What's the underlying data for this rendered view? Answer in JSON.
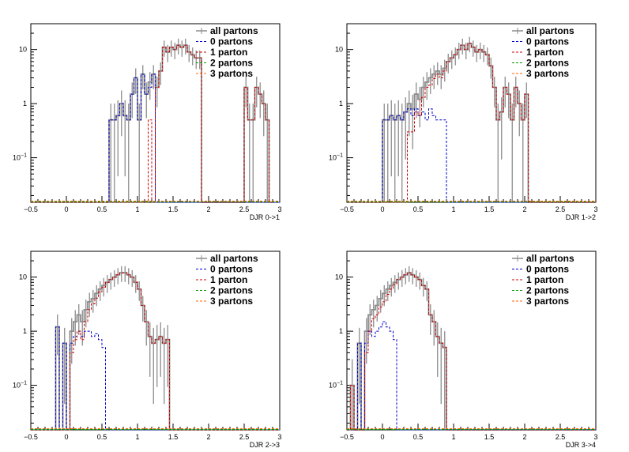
{
  "colors": {
    "all": "#8c8c8c",
    "p0": "#0000cc",
    "p1": "#cc0000",
    "p2": "#009900",
    "p3": "#ff6600"
  },
  "legend_entries": [
    "all partons",
    "0 partons",
    "1 parton",
    "2 partons",
    "3 partons"
  ],
  "chart_data": [
    {
      "type": "histogram",
      "xlabel": "DJR 0->1",
      "xlim": [
        -0.5,
        3
      ],
      "ylim": [
        0.015,
        30
      ],
      "log_y": true,
      "xticks": [
        -0.5,
        0,
        0.5,
        1,
        1.5,
        2,
        2.5,
        3
      ],
      "yticks": [
        {
          "v": 0.1,
          "label": "10^-1"
        },
        {
          "v": 1,
          "label": "1"
        },
        {
          "v": 10,
          "label": "10"
        }
      ],
      "legend": "top-right",
      "bin_start": -0.5,
      "bin_width": 0.05,
      "total": [
        0,
        0,
        0,
        0,
        0,
        0,
        0,
        0,
        0,
        0,
        0,
        0,
        0,
        0,
        0,
        0,
        0,
        0,
        0,
        0,
        0,
        0,
        0.5,
        0.5,
        0.6,
        1.0,
        0.6,
        0.5,
        1.5,
        3.0,
        0.5,
        3.5,
        1.5,
        2.5,
        3.5,
        2.0,
        4.0,
        11,
        9,
        11,
        10,
        12,
        11,
        12,
        9,
        8,
        7,
        7,
        0,
        0,
        0,
        0,
        0,
        0,
        0,
        0,
        0,
        0,
        0,
        0,
        2.0,
        0.5,
        0.5,
        2.0,
        1.5,
        1.0,
        0.5,
        0
      ],
      "p0": [
        0,
        0,
        0,
        0,
        0,
        0,
        0,
        0,
        0,
        0,
        0,
        0,
        0,
        0,
        0,
        0,
        0,
        0,
        0,
        0,
        0,
        0,
        0.5,
        0.5,
        0.6,
        1.0,
        0.6,
        0.5,
        1.5,
        3.0,
        0.5,
        3.5,
        1.5,
        2.0,
        3.5,
        0,
        0,
        0,
        0,
        0,
        0,
        0,
        0,
        0,
        0,
        0,
        0,
        0,
        0,
        0,
        0,
        0,
        0,
        0,
        0,
        0,
        0,
        0,
        0,
        0,
        0,
        0,
        0,
        0,
        0,
        0,
        0,
        0,
        0,
        0
      ],
      "p1": [
        0,
        0,
        0,
        0,
        0,
        0,
        0,
        0,
        0,
        0,
        0,
        0,
        0,
        0,
        0,
        0,
        0,
        0,
        0,
        0,
        0,
        0,
        0,
        0,
        0,
        0,
        0,
        0,
        0,
        0,
        0,
        0,
        0,
        0.5,
        0,
        2.0,
        4.0,
        11,
        9,
        11,
        10,
        12,
        11,
        12,
        9,
        8,
        7,
        7,
        0,
        0,
        0,
        0,
        0,
        0,
        0,
        0,
        0,
        0,
        0,
        0,
        2.0,
        0.5,
        0.5,
        2.0,
        1.5,
        1.0,
        0.5,
        0
      ]
    },
    {
      "type": "histogram",
      "xlabel": "DJR 1->2",
      "xlim": [
        -0.5,
        3
      ],
      "ylim": [
        0.015,
        30
      ],
      "log_y": true,
      "xticks": [
        -0.5,
        0,
        0.5,
        1,
        1.5,
        2,
        2.5,
        3
      ],
      "yticks": [
        {
          "v": 0.1,
          "label": "10^-1"
        },
        {
          "v": 1,
          "label": "1"
        },
        {
          "v": 10,
          "label": "10"
        }
      ],
      "legend": "top-right",
      "bin_start": -0.5,
      "bin_width": 0.05,
      "total": [
        0,
        0,
        0,
        0,
        0,
        0,
        0,
        0,
        0,
        0,
        0.5,
        0.5,
        0.6,
        0.5,
        0.6,
        0.5,
        0.7,
        1.0,
        0.8,
        1.5,
        1.2,
        2.0,
        2.5,
        3.0,
        3.5,
        4.0,
        3.5,
        4.5,
        6.0,
        7.0,
        8.0,
        10,
        12,
        10,
        13,
        11,
        9,
        10,
        9,
        8,
        5,
        2.0,
        0.5,
        0.7,
        2.0,
        1.5,
        0.5,
        2.0,
        1.0,
        0.5,
        1.5,
        0,
        0,
        0,
        0,
        0,
        0,
        0,
        0,
        0,
        0,
        0,
        0,
        0,
        0,
        0,
        0,
        0,
        0,
        0
      ],
      "p0": [
        0,
        0,
        0,
        0,
        0,
        0,
        0,
        0,
        0,
        0,
        0.5,
        0.5,
        0.6,
        0.5,
        0.6,
        0.5,
        0.7,
        0.8,
        0.6,
        0.8,
        0.6,
        0.7,
        0.5,
        0.8,
        0.6,
        0.5,
        0.5,
        0.5,
        0,
        0,
        0,
        0,
        0,
        0,
        0,
        0,
        0,
        0,
        0,
        0,
        0,
        0,
        0,
        0,
        0,
        0,
        0,
        0,
        0,
        0,
        0,
        0,
        0,
        0,
        0,
        0,
        0,
        0,
        0,
        0,
        0,
        0,
        0,
        0,
        0,
        0,
        0,
        0,
        0,
        0
      ],
      "p1": [
        0,
        0,
        0,
        0,
        0,
        0,
        0,
        0,
        0,
        0,
        0,
        0,
        0,
        0,
        0,
        0,
        0,
        0.3,
        0.3,
        0.7,
        0.6,
        1.3,
        2.0,
        2.2,
        2.9,
        3.5,
        3.0,
        4.0,
        6.0,
        7.0,
        8.0,
        10,
        12,
        10,
        13,
        11,
        9,
        10,
        9,
        8,
        5,
        2.0,
        0.5,
        0.7,
        2.0,
        1.5,
        0.5,
        2.0,
        1.0,
        0.5,
        1.5,
        0,
        0,
        0,
        0,
        0,
        0,
        0,
        0,
        0,
        0,
        0,
        0,
        0,
        0,
        0,
        0,
        0,
        0,
        0
      ]
    },
    {
      "type": "histogram",
      "xlabel": "DJR 2->3",
      "xlim": [
        -0.5,
        3
      ],
      "ylim": [
        0.015,
        30
      ],
      "log_y": true,
      "xticks": [
        -0.5,
        0,
        0.5,
        1,
        1.5,
        2,
        2.5,
        3
      ],
      "yticks": [
        {
          "v": 0.1,
          "label": "10^-1"
        },
        {
          "v": 1,
          "label": "1"
        },
        {
          "v": 10,
          "label": "10"
        }
      ],
      "legend": "top-right",
      "bin_start": -0.5,
      "bin_width": 0.05,
      "total": [
        0,
        0,
        0,
        0,
        0,
        0,
        0,
        1.2,
        0,
        0.6,
        0,
        1.0,
        1.5,
        2.0,
        1.5,
        2.5,
        3.5,
        4.0,
        5.0,
        6.0,
        7.0,
        8.0,
        9.0,
        10,
        11,
        12,
        12,
        11,
        10,
        8,
        6,
        3.0,
        1.5,
        0.8,
        0.6,
        0.7,
        0.8,
        0.6,
        0.7,
        0,
        0,
        0,
        0,
        0,
        0,
        0,
        0,
        0,
        0,
        0,
        0,
        0,
        0,
        0,
        0,
        0,
        0,
        0,
        0,
        0,
        0,
        0,
        0,
        0,
        0,
        0,
        0,
        0,
        0,
        0
      ],
      "p0": [
        0,
        0,
        0,
        0,
        0,
        0,
        0,
        1.2,
        0,
        0.6,
        0,
        0.6,
        0.8,
        1.0,
        0.8,
        1.0,
        1.0,
        0.8,
        0.9,
        0.7,
        0.5,
        0,
        0,
        0,
        0,
        0,
        0,
        0,
        0,
        0,
        0,
        0,
        0,
        0,
        0,
        0,
        0,
        0,
        0,
        0,
        0,
        0,
        0,
        0,
        0,
        0,
        0,
        0,
        0,
        0,
        0,
        0,
        0,
        0,
        0,
        0,
        0,
        0,
        0,
        0,
        0,
        0,
        0,
        0,
        0,
        0,
        0,
        0,
        0,
        0
      ],
      "p1": [
        0,
        0,
        0,
        0,
        0,
        0,
        0,
        0,
        0,
        0,
        0,
        0.4,
        0.7,
        1.0,
        0.7,
        1.5,
        2.5,
        3.2,
        4.1,
        5.3,
        6.5,
        8.0,
        9.0,
        10,
        11,
        12,
        12,
        11,
        10,
        8,
        6,
        3.0,
        1.5,
        0.8,
        0.6,
        0.7,
        0.8,
        0.6,
        0.7,
        0,
        0,
        0,
        0,
        0,
        0,
        0,
        0,
        0,
        0,
        0,
        0,
        0,
        0,
        0,
        0,
        0,
        0,
        0,
        0,
        0,
        0,
        0,
        0,
        0,
        0,
        0,
        0,
        0,
        0,
        0
      ]
    },
    {
      "type": "histogram",
      "xlabel": "DJR 3->4",
      "xlim": [
        -0.5,
        3
      ],
      "ylim": [
        0.015,
        30
      ],
      "log_y": true,
      "xticks": [
        -0.5,
        0,
        0.5,
        1,
        1.5,
        2,
        2.5,
        3
      ],
      "yticks": [
        {
          "v": 0.1,
          "label": "10^-1"
        },
        {
          "v": 1,
          "label": "1"
        },
        {
          "v": 10,
          "label": "10"
        }
      ],
      "legend": "top-right",
      "bin_start": -0.5,
      "bin_width": 0.05,
      "total": [
        0,
        0.1,
        0,
        0.6,
        0,
        1.0,
        2.0,
        2.5,
        3.0,
        4.0,
        5.0,
        6.0,
        7.0,
        8.0,
        9.0,
        10,
        11,
        12,
        11,
        10,
        9,
        7,
        6,
        2.0,
        1.5,
        0.8,
        0.6,
        0.5,
        0,
        0,
        0,
        0,
        0,
        0,
        0,
        0,
        0,
        0,
        0,
        0,
        0,
        0,
        0,
        0,
        0,
        0,
        0,
        0,
        0,
        0,
        0,
        0,
        0,
        0,
        0,
        0,
        0,
        0,
        0,
        0,
        0,
        0,
        0,
        0,
        0,
        0,
        0,
        0,
        0,
        0
      ],
      "p0": [
        0,
        0,
        0,
        0.6,
        0,
        0.6,
        1.0,
        0.8,
        1.0,
        1.2,
        1.5,
        1.2,
        1.0,
        0.7,
        0,
        0,
        0,
        0,
        0,
        0,
        0,
        0,
        0,
        0,
        0,
        0,
        0,
        0,
        0,
        0,
        0,
        0,
        0,
        0,
        0,
        0,
        0,
        0,
        0,
        0,
        0,
        0,
        0,
        0,
        0,
        0,
        0,
        0,
        0,
        0,
        0,
        0,
        0,
        0,
        0,
        0,
        0,
        0,
        0,
        0,
        0,
        0,
        0,
        0,
        0,
        0,
        0,
        0,
        0,
        0
      ],
      "p1": [
        0,
        0.1,
        0,
        0,
        0,
        0.4,
        1.0,
        1.7,
        2.0,
        2.8,
        3.5,
        4.8,
        6.0,
        7.3,
        9.0,
        10,
        11,
        12,
        11,
        10,
        9,
        7,
        6,
        2.0,
        1.5,
        0.8,
        0.6,
        0.5,
        0,
        0,
        0,
        0,
        0,
        0,
        0,
        0,
        0,
        0,
        0,
        0,
        0,
        0,
        0,
        0,
        0,
        0,
        0,
        0,
        0,
        0,
        0,
        0,
        0,
        0,
        0,
        0,
        0,
        0,
        0,
        0,
        0,
        0,
        0,
        0,
        0,
        0,
        0,
        0,
        0,
        0
      ]
    }
  ]
}
